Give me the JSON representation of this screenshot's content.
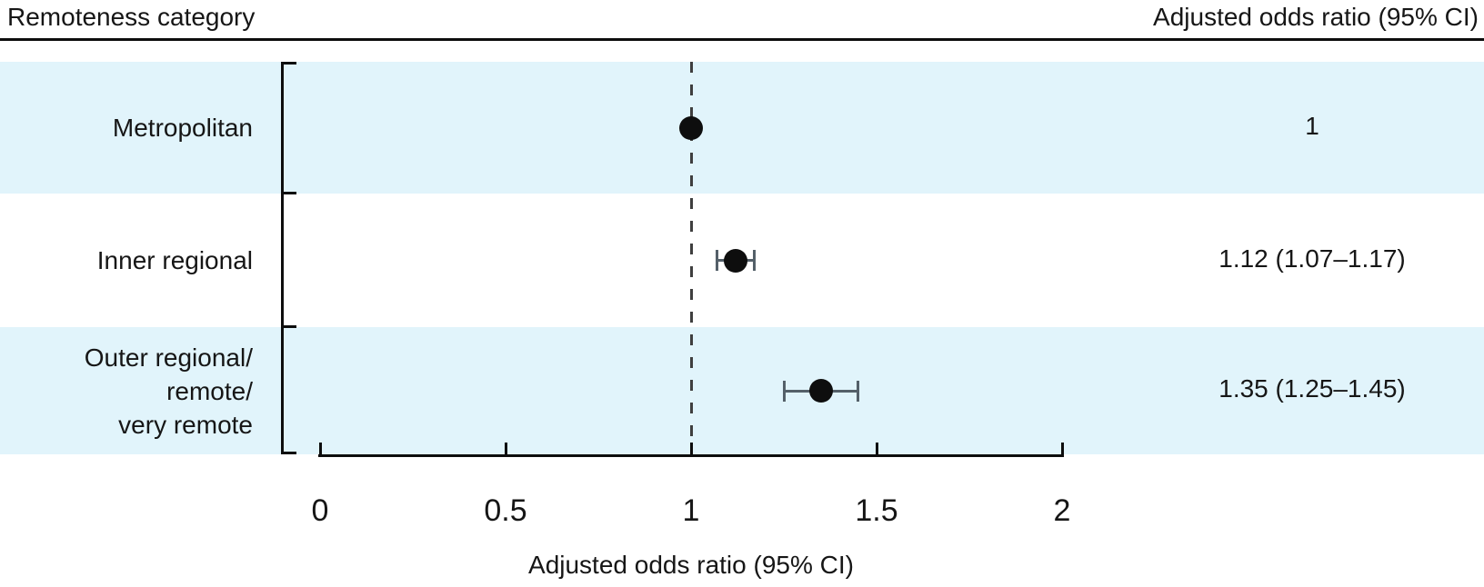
{
  "header": {
    "left_title": "Remoteness category",
    "right_title": "Adjusted odds ratio (95% CI)"
  },
  "axis": {
    "title": "Adjusted odds ratio (95% CI)",
    "tick_labels": [
      "0",
      "0.5",
      "1",
      "1.5",
      "2"
    ],
    "tick_values": [
      0,
      0.5,
      1,
      1.5,
      2
    ],
    "min": 0,
    "max": 2,
    "reference_value": 1
  },
  "rows": [
    {
      "category": "Metropolitan",
      "value_label": "1",
      "estimate": 1,
      "ci_low": null,
      "ci_high": null,
      "shaded": true
    },
    {
      "category": "Inner regional",
      "value_label": "1.12 (1.07–1.17)",
      "estimate": 1.12,
      "ci_low": 1.07,
      "ci_high": 1.17,
      "shaded": false
    },
    {
      "category": "Outer regional/\nremote/\nvery remote",
      "value_label": "1.35 (1.25–1.45)",
      "estimate": 1.35,
      "ci_low": 1.25,
      "ci_high": 1.45,
      "shaded": true
    }
  ],
  "colors": {
    "band": "#e1f4fb",
    "point": "#0e0e0e",
    "whisker": "#546069",
    "dash": "#3f3f3f",
    "axis": "#0d0d0d"
  },
  "chart_data": {
    "type": "scatter",
    "subtype": "forest-plot",
    "title": "",
    "xlabel": "Adjusted odds ratio (95% CI)",
    "ylabel": "Remoteness category",
    "xlim": [
      0,
      2
    ],
    "xticks": [
      0,
      0.5,
      1,
      1.5,
      2
    ],
    "reference_line_x": 1,
    "reference_line_style": "dashed",
    "grid": false,
    "legend": false,
    "categories": [
      "Metropolitan",
      "Inner regional",
      "Outer regional/remote/very remote"
    ],
    "series": [
      {
        "name": "Adjusted odds ratio",
        "values": [
          1,
          1.12,
          1.35
        ],
        "ci_low": [
          null,
          1.07,
          1.25
        ],
        "ci_high": [
          null,
          1.17,
          1.45
        ],
        "labels": [
          "1",
          "1.12 (1.07–1.17)",
          "1.35 (1.25–1.45)"
        ]
      }
    ]
  }
}
